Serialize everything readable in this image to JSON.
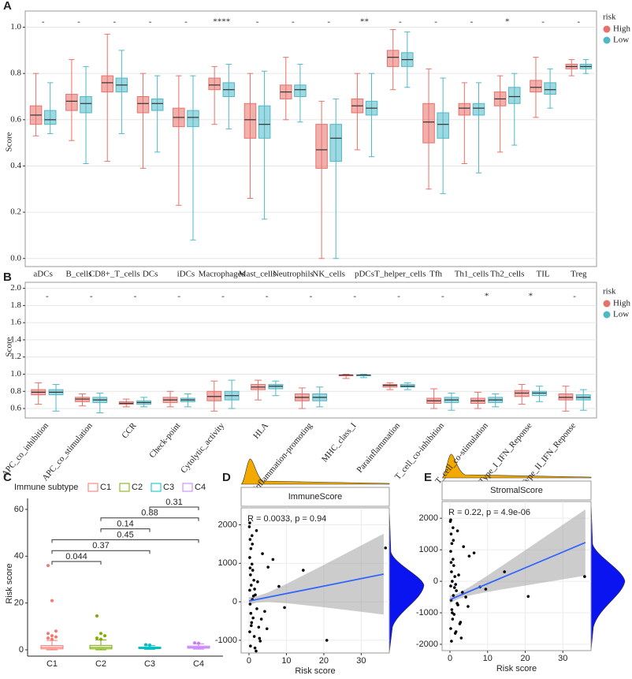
{
  "chart_data": [
    {
      "type": "box",
      "panel_label": "A",
      "ylabel": "Score",
      "grid": true,
      "legend_title": "risk",
      "ylim": [
        -0.035,
        1.07
      ],
      "yticks": [
        {
          "value": 0,
          "label": "0.0"
        },
        0.2,
        0.4,
        0.6,
        0.8,
        {
          "value": 1,
          "label": "1.0"
        }
      ],
      "categories": [
        "aDCs",
        "B_cells",
        "CD8+_T_cells",
        "DCs",
        "iDCs",
        "Macrophages",
        "Mast_cells",
        "Neutrophils",
        "NK_cells",
        "pDCs",
        "T_helper_cells",
        "Tfh",
        "Th1_cells",
        "Th2_cells",
        "TIL",
        "Treg"
      ],
      "significance": [
        "-",
        "-",
        "-",
        "-",
        "-",
        "****",
        "-",
        "-",
        "-",
        "**",
        "-",
        "-",
        "-",
        "*",
        "-",
        "-"
      ],
      "series": [
        {
          "name": "High",
          "color": "#e8706a",
          "values": [
            [
              0.53,
              0.58,
              0.62,
              0.66,
              0.8
            ],
            [
              0.51,
              0.64,
              0.68,
              0.71,
              0.86
            ],
            [
              0.42,
              0.72,
              0.76,
              0.79,
              0.97
            ],
            [
              0.39,
              0.63,
              0.67,
              0.7,
              0.8
            ],
            [
              0.23,
              0.57,
              0.61,
              0.65,
              0.79
            ],
            [
              0.58,
              0.73,
              0.75,
              0.78,
              0.83
            ],
            [
              0.26,
              0.52,
              0.6,
              0.67,
              0.8
            ],
            [
              0.6,
              0.69,
              0.72,
              0.75,
              0.87
            ],
            [
              0.0,
              0.39,
              0.47,
              0.58,
              0.68
            ],
            [
              0.47,
              0.63,
              0.66,
              0.69,
              0.8
            ],
            [
              0.73,
              0.83,
              0.87,
              0.9,
              0.99
            ],
            [
              0.3,
              0.5,
              0.59,
              0.67,
              0.82
            ],
            [
              0.41,
              0.62,
              0.65,
              0.67,
              0.76
            ],
            [
              0.46,
              0.66,
              0.69,
              0.72,
              0.79
            ],
            [
              0.61,
              0.72,
              0.74,
              0.77,
              0.87
            ],
            [
              0.79,
              0.82,
              0.83,
              0.84,
              0.86
            ]
          ]
        },
        {
          "name": "Low",
          "color": "#4fb8c7",
          "values": [
            [
              0.54,
              0.58,
              0.6,
              0.64,
              0.76
            ],
            [
              0.41,
              0.63,
              0.67,
              0.7,
              0.83
            ],
            [
              0.54,
              0.72,
              0.75,
              0.78,
              0.9
            ],
            [
              0.46,
              0.64,
              0.67,
              0.69,
              0.79
            ],
            [
              0.08,
              0.57,
              0.61,
              0.64,
              0.79
            ],
            [
              0.56,
              0.7,
              0.73,
              0.76,
              0.84
            ],
            [
              0.17,
              0.52,
              0.58,
              0.66,
              0.81
            ],
            [
              0.59,
              0.7,
              0.73,
              0.75,
              0.84
            ],
            [
              0.0,
              0.42,
              0.52,
              0.58,
              0.69
            ],
            [
              0.44,
              0.62,
              0.65,
              0.68,
              0.8
            ],
            [
              0.74,
              0.83,
              0.86,
              0.89,
              0.98
            ],
            [
              0.28,
              0.52,
              0.58,
              0.63,
              0.78
            ],
            [
              0.37,
              0.62,
              0.65,
              0.67,
              0.76
            ],
            [
              0.49,
              0.67,
              0.7,
              0.74,
              0.8
            ],
            [
              0.65,
              0.71,
              0.73,
              0.76,
              0.82
            ],
            [
              0.8,
              0.82,
              0.83,
              0.84,
              0.86
            ]
          ]
        }
      ]
    },
    {
      "type": "box",
      "panel_label": "B",
      "ylabel": "Score",
      "grid": true,
      "legend_title": "risk",
      "ylim": [
        0.49,
        2.07
      ],
      "yticks": [
        0.6,
        0.8,
        {
          "value": 1,
          "label": "1.0"
        },
        1.2,
        1.4,
        1.6,
        1.8,
        {
          "value": 2,
          "label": "2.0"
        }
      ],
      "categories": [
        "APC_co_inhibition",
        "APC_co_stimulation",
        "CCR",
        "Check-point",
        "Cytolytic_activity",
        "HLA",
        "Inflammation-promoting",
        "MHC_class_I",
        "Parainflammation",
        "T_cell_co-inhibition",
        "T_cell_co-stimulation",
        "Type_I_IFN_Reponse",
        "Type_II_IFN_Reponse"
      ],
      "significance": [
        "-",
        "-",
        "-",
        "-",
        "-",
        "-",
        "-",
        "-",
        "-",
        "-",
        "*",
        "*",
        "-"
      ],
      "series": [
        {
          "name": "High",
          "color": "#e8706a",
          "values": [
            [
              0.65,
              0.76,
              0.79,
              0.82,
              0.9
            ],
            [
              0.63,
              0.68,
              0.71,
              0.73,
              0.77
            ],
            [
              0.62,
              0.65,
              0.66,
              0.68,
              0.71
            ],
            [
              0.62,
              0.67,
              0.7,
              0.73,
              0.8
            ],
            [
              0.57,
              0.69,
              0.74,
              0.8,
              0.92
            ],
            [
              0.7,
              0.82,
              0.85,
              0.88,
              0.93
            ],
            [
              0.6,
              0.69,
              0.73,
              0.77,
              0.84
            ],
            [
              0.95,
              0.98,
              0.99,
              0.99,
              1.0
            ],
            [
              0.82,
              0.85,
              0.87,
              0.88,
              0.9
            ],
            [
              0.6,
              0.66,
              0.69,
              0.72,
              0.83
            ],
            [
              0.6,
              0.66,
              0.69,
              0.72,
              0.79
            ],
            [
              0.65,
              0.74,
              0.78,
              0.81,
              0.88
            ],
            [
              0.57,
              0.7,
              0.73,
              0.77,
              0.86
            ]
          ]
        },
        {
          "name": "Low",
          "color": "#4fb8c7",
          "values": [
            [
              0.57,
              0.76,
              0.79,
              0.82,
              0.88
            ],
            [
              0.55,
              0.67,
              0.7,
              0.73,
              0.78
            ],
            [
              0.62,
              0.65,
              0.67,
              0.69,
              0.73
            ],
            [
              0.62,
              0.68,
              0.7,
              0.72,
              0.77
            ],
            [
              0.6,
              0.7,
              0.75,
              0.8,
              0.93
            ],
            [
              0.75,
              0.83,
              0.86,
              0.88,
              0.92
            ],
            [
              0.62,
              0.69,
              0.73,
              0.77,
              0.85
            ],
            [
              0.96,
              0.98,
              0.99,
              0.99,
              1.0
            ],
            [
              0.82,
              0.85,
              0.86,
              0.88,
              0.9
            ],
            [
              0.58,
              0.67,
              0.7,
              0.73,
              0.78
            ],
            [
              0.62,
              0.67,
              0.7,
              0.73,
              0.77
            ],
            [
              0.68,
              0.75,
              0.78,
              0.8,
              0.86
            ],
            [
              0.58,
              0.7,
              0.73,
              0.76,
              0.82
            ]
          ]
        }
      ]
    },
    {
      "type": "box",
      "panel_label": "C",
      "ylabel": "Risk score",
      "grid": false,
      "legend_title": "Immune subtype",
      "ylim": [
        -2.7,
        64.7
      ],
      "yticks": [
        0,
        20,
        40,
        60
      ],
      "categories": [
        "C1",
        "C2",
        "C3",
        "C4"
      ],
      "colors": [
        "#f8766d",
        "#7cae00",
        "#00bfc4",
        "#c77cff"
      ],
      "values": [
        [
          0,
          0.4,
          1.0,
          1.8,
          4
        ],
        [
          0,
          0.4,
          1.0,
          1.9,
          4.2
        ],
        [
          0.2,
          0.5,
          0.8,
          1.2,
          1.8
        ],
        [
          0.3,
          0.7,
          1.1,
          1.6,
          2.6
        ]
      ],
      "outliers": [
        [
          36,
          21,
          8,
          7,
          6,
          5.5,
          5,
          4.5
        ],
        [
          14.5,
          7,
          6,
          5,
          4.5
        ],
        [
          2.2,
          2
        ],
        [
          3,
          2.8
        ]
      ],
      "comparisons": [
        {
          "groups": [
            "C1",
            "C2"
          ],
          "label": "0.044"
        },
        {
          "groups": [
            "C1",
            "C3"
          ],
          "label": "0.37"
        },
        {
          "groups": [
            "C1",
            "C4"
          ],
          "label": "0.45"
        },
        {
          "groups": [
            "C2",
            "C3"
          ],
          "label": "0.14"
        },
        {
          "groups": [
            "C2",
            "C4"
          ],
          "label": "0.88"
        },
        {
          "groups": [
            "C3",
            "C4"
          ],
          "label": "0.31"
        }
      ]
    },
    {
      "type": "scatter",
      "panel_label": "D",
      "title": "ImmuneScore",
      "xlabel": "Risk score",
      "grid": true,
      "annotation": "R = 0.0033, p = 0.94",
      "xlim": [
        -2.1,
        37.5
      ],
      "xticks": [
        0,
        10,
        20,
        30
      ],
      "ylim": [
        -1330,
        2440
      ],
      "yticks": [
        -1000,
        0,
        1000,
        2000
      ],
      "x": [
        0.1,
        0.3,
        0.5,
        0.2,
        0.8,
        1.0,
        0.4,
        1.3,
        0.6,
        0.2,
        1.7,
        0.9,
        0.3,
        2.1,
        0.5,
        1.1,
        0.7,
        2.6,
        0.2,
        1.4,
        3.0,
        0.4,
        1.9,
        0.8,
        3.6,
        0.3,
        2.3,
        1.2,
        4.2,
        0.6,
        2.8,
        1.6,
        5.1,
        0.9,
        3.3,
        0.2,
        6.4,
        1.5,
        4.8,
        2.0,
        8.0,
        14.5,
        20.8,
        36.5,
        9.5
      ],
      "values": [
        1950,
        1620,
        1380,
        1150,
        980,
        820,
        700,
        560,
        430,
        300,
        180,
        60,
        -60,
        -180,
        -300,
        -420,
        -540,
        -660,
        -780,
        -900,
        -1020,
        -1150,
        -1280,
        1720,
        1250,
        880,
        520,
        150,
        -250,
        -620,
        -950,
        -1200,
        900,
        1500,
        -450,
        2050,
        1100,
        330,
        -700,
        1850,
        400,
        820,
        -1000,
        1400,
        -150
      ],
      "fit_x": [
        0,
        36
      ],
      "fit_y": [
        20,
        718
      ],
      "ci_x": [
        0,
        2,
        5,
        10,
        20,
        36
      ],
      "ci_upper": [
        120,
        139,
        237,
        464,
        958,
        1768
      ],
      "ci_lower": [
        -80,
        -21,
        -3,
        -36,
        -142,
        -332
      ],
      "color": "#000000",
      "fit_color": "#3366ff"
    },
    {
      "type": "scatter",
      "panel_label": "E",
      "title": "StromalScore",
      "xlabel": "Risk score",
      "grid": true,
      "annotation": "R = 0.22, p = 4.9e-06",
      "xlim": [
        -2.1,
        37.5
      ],
      "xticks": [
        0,
        10,
        20,
        30
      ],
      "ylim": [
        -2200,
        2530
      ],
      "yticks": [
        -2000,
        -1000,
        0,
        1000,
        2000
      ],
      "x": [
        0.1,
        0.3,
        0.5,
        0.2,
        0.8,
        1.0,
        0.4,
        1.3,
        0.6,
        0.2,
        1.7,
        0.9,
        0.3,
        2.1,
        0.5,
        1.1,
        0.7,
        2.6,
        0.2,
        1.4,
        3.0,
        0.4,
        1.9,
        0.8,
        3.6,
        0.3,
        2.3,
        1.2,
        4.2,
        0.6,
        2.8,
        1.6,
        5.1,
        0.9,
        3.3,
        0.2,
        6.4,
        1.5,
        4.8,
        2.0,
        8.0,
        14.5,
        20.8,
        35.8,
        9.5
      ],
      "values": [
        1900,
        1500,
        1200,
        950,
        700,
        500,
        300,
        150,
        0,
        -150,
        -300,
        -450,
        -600,
        -750,
        -900,
        -1050,
        -1200,
        -1350,
        -1500,
        -1650,
        -1800,
        -1900,
        -700,
        1700,
        1100,
        600,
        200,
        -200,
        -500,
        -1000,
        -1300,
        -1600,
        800,
        1300,
        -350,
        1950,
        900,
        -100,
        -800,
        1600,
        -180,
        300,
        -480,
        150,
        -250
      ],
      "fit_x": [
        0,
        36
      ],
      "fit_y": [
        -580,
        1231
      ],
      "ci_x": [
        0,
        2,
        5,
        10,
        20,
        36
      ],
      "ci_upper": [
        -460,
        -389,
        -198,
        183,
        986,
        2281
      ],
      "ci_lower": [
        -700,
        -569,
        -458,
        -337,
        -134,
        181
      ],
      "color": "#000000",
      "fit_color": "#3366ff"
    }
  ]
}
